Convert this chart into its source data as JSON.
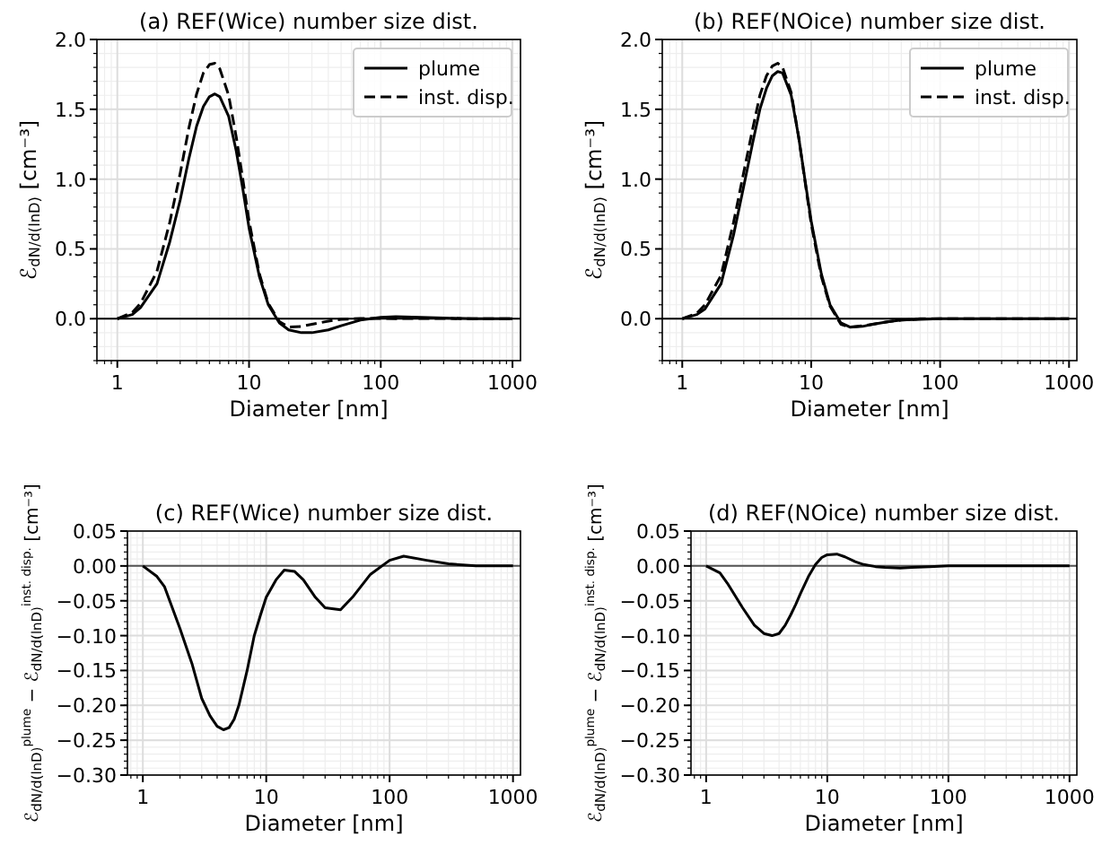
{
  "chart_data": [
    {
      "type": "line",
      "title": "(a) REF(Wice) number size dist.",
      "xlabel": "Diameter [nm]",
      "ylabel": "ℰ$_{dN/d(lnD)}$ [cm⁻³]",
      "log": "x",
      "grid": true,
      "legend": "top right",
      "xlim": [
        0.7,
        1150
      ],
      "xticks": [
        1,
        10,
        100,
        1000
      ],
      "ylim": [
        -0.3,
        2.0
      ],
      "yticks": [
        {
          "value": 0,
          "label": "0.0"
        },
        {
          "value": 0.5,
          "label": "0.5"
        },
        {
          "value": 1,
          "label": "1.0"
        },
        {
          "value": 1.5,
          "label": "1.5"
        },
        {
          "value": 2,
          "label": "2.0"
        }
      ],
      "ref_lines": [
        {
          "axis": "y",
          "value": 0,
          "color": "#000000"
        }
      ],
      "x": [
        1,
        1.3,
        1.5,
        2,
        2.5,
        3,
        3.5,
        4,
        4.5,
        5,
        5.5,
        6,
        7,
        8,
        9,
        10,
        12,
        14,
        17,
        20,
        25,
        30,
        40,
        50,
        70,
        100,
        130,
        200,
        300,
        500,
        1000
      ],
      "series": [
        {
          "name": "plume",
          "color": "#000000",
          "line_style": "solid",
          "values": [
            0,
            0.03,
            0.08,
            0.25,
            0.55,
            0.85,
            1.15,
            1.38,
            1.52,
            1.59,
            1.61,
            1.59,
            1.45,
            1.2,
            0.92,
            0.65,
            0.3,
            0.1,
            -0.03,
            -0.08,
            -0.1,
            -0.1,
            -0.08,
            -0.05,
            -0.01,
            0.01,
            0.015,
            0.01,
            0.005,
            0,
            0
          ]
        },
        {
          "name": "inst. disp.",
          "color": "#000000",
          "line_style": "dashed",
          "values": [
            0,
            0.045,
            0.11,
            0.34,
            0.69,
            1.04,
            1.37,
            1.61,
            1.76,
            1.82,
            1.83,
            1.79,
            1.6,
            1.3,
            0.99,
            0.7,
            0.32,
            0.11,
            -0.02,
            -0.06,
            -0.055,
            -0.04,
            -0.017,
            -0.005,
            0.002,
            0.002,
            0.001,
            0.002,
            0.002,
            0,
            0
          ]
        }
      ]
    },
    {
      "type": "line",
      "title": "(b) REF(NOice) number size dist.",
      "xlabel": "Diameter [nm]",
      "ylabel": "ℰ$_{dN/d(lnD)}$ [cm⁻³]",
      "log": "x",
      "grid": true,
      "legend": "top right",
      "xlim": [
        0.7,
        1150
      ],
      "xticks": [
        1,
        10,
        100,
        1000
      ],
      "ylim": [
        -0.3,
        2.0
      ],
      "yticks": [
        {
          "value": 0,
          "label": "0.0"
        },
        {
          "value": 0.5,
          "label": "0.5"
        },
        {
          "value": 1,
          "label": "1.0"
        },
        {
          "value": 1.5,
          "label": "1.5"
        },
        {
          "value": 2,
          "label": "2.0"
        }
      ],
      "ref_lines": [
        {
          "axis": "y",
          "value": 0,
          "color": "#000000"
        }
      ],
      "x": [
        1,
        1.3,
        1.5,
        2,
        2.5,
        3,
        3.5,
        4,
        4.5,
        5,
        5.5,
        6,
        7,
        8,
        9,
        10,
        12,
        14,
        17,
        20,
        25,
        30,
        40,
        50,
        70,
        100,
        130,
        200,
        300,
        500,
        1000
      ],
      "series": [
        {
          "name": "plume",
          "color": "#000000",
          "line_style": "solid",
          "values": [
            0,
            0.03,
            0.07,
            0.25,
            0.6,
            0.95,
            1.25,
            1.5,
            1.65,
            1.74,
            1.77,
            1.76,
            1.6,
            1.3,
            0.98,
            0.7,
            0.32,
            0.1,
            -0.03,
            -0.06,
            -0.055,
            -0.04,
            -0.02,
            -0.01,
            -0.005,
            0,
            0,
            0,
            0,
            0,
            0
          ]
        },
        {
          "name": "inst. disp.",
          "color": "#000000",
          "line_style": "dashed",
          "values": [
            0,
            0.04,
            0.1,
            0.31,
            0.69,
            1.05,
            1.35,
            1.6,
            1.74,
            1.81,
            1.83,
            1.8,
            1.62,
            1.3,
            0.97,
            0.68,
            0.3,
            0.09,
            -0.04,
            -0.06,
            -0.05,
            -0.04,
            -0.02,
            -0.01,
            0,
            0,
            0,
            0,
            0,
            0,
            0
          ]
        }
      ]
    },
    {
      "type": "line",
      "title": "(c) REF(Wice) number size dist.",
      "xlabel": "Diameter [nm]",
      "ylabel": "ℰ$_{dN/d(lnD)}$$^{plume}$ − ℰ$_{dN/d(lnD)}$$^{inst. disp.}$ [cm⁻³]",
      "log": "x",
      "grid": true,
      "xlim": [
        0.75,
        1150
      ],
      "xticks": [
        1,
        10,
        100,
        1000
      ],
      "ylim": [
        -0.3,
        0.05
      ],
      "yticks": [
        {
          "value": -0.3,
          "label": "−0.30"
        },
        {
          "value": -0.25,
          "label": "−0.25"
        },
        {
          "value": -0.2,
          "label": "−0.20"
        },
        {
          "value": -0.15,
          "label": "−0.15"
        },
        {
          "value": -0.1,
          "label": "−0.10"
        },
        {
          "value": -0.05,
          "label": "−0.05"
        },
        {
          "value": 0,
          "label": "0.00"
        },
        {
          "value": 0.05,
          "label": "0.05"
        }
      ],
      "ref_lines": [
        {
          "axis": "y",
          "value": 0,
          "color": "#555555"
        }
      ],
      "x": [
        1,
        1.3,
        1.5,
        2,
        2.5,
        3,
        3.5,
        4,
        4.5,
        5,
        5.5,
        6,
        7,
        8,
        9,
        10,
        12,
        14,
        17,
        20,
        25,
        30,
        40,
        50,
        70,
        100,
        130,
        200,
        300,
        500,
        1000
      ],
      "series": [
        {
          "color": "#000000",
          "line_style": "solid",
          "values": [
            0,
            -0.015,
            -0.03,
            -0.09,
            -0.14,
            -0.19,
            -0.215,
            -0.23,
            -0.235,
            -0.232,
            -0.22,
            -0.2,
            -0.15,
            -0.1,
            -0.07,
            -0.045,
            -0.02,
            -0.006,
            -0.008,
            -0.02,
            -0.045,
            -0.06,
            -0.063,
            -0.045,
            -0.012,
            0.008,
            0.014,
            0.008,
            0.003,
            0,
            0
          ]
        }
      ]
    },
    {
      "type": "line",
      "title": "(d) REF(NOice) number size dist.",
      "xlabel": "Diameter [nm]",
      "ylabel": "ℰ$_{dN/d(lnD)}$$^{plume}$ − ℰ$_{dN/d(lnD)}$$^{inst. disp.}$ [cm⁻³]",
      "log": "x",
      "grid": true,
      "xlim": [
        0.75,
        1150
      ],
      "xticks": [
        1,
        10,
        100,
        1000
      ],
      "ylim": [
        -0.3,
        0.05
      ],
      "yticks": [
        {
          "value": -0.3,
          "label": "−0.30"
        },
        {
          "value": -0.25,
          "label": "−0.25"
        },
        {
          "value": -0.2,
          "label": "−0.20"
        },
        {
          "value": -0.15,
          "label": "−0.15"
        },
        {
          "value": -0.1,
          "label": "−0.10"
        },
        {
          "value": -0.05,
          "label": "−0.05"
        },
        {
          "value": 0,
          "label": "0.00"
        },
        {
          "value": 0.05,
          "label": "0.05"
        }
      ],
      "ref_lines": [
        {
          "axis": "y",
          "value": 0,
          "color": "#555555"
        }
      ],
      "x": [
        1,
        1.3,
        1.5,
        2,
        2.5,
        3,
        3.5,
        4,
        4.5,
        5,
        5.5,
        6,
        7,
        8,
        9,
        10,
        12,
        14,
        17,
        20,
        25,
        30,
        40,
        50,
        70,
        100,
        130,
        200,
        300,
        500,
        1000
      ],
      "series": [
        {
          "color": "#000000",
          "line_style": "solid",
          "values": [
            0,
            -0.01,
            -0.025,
            -0.06,
            -0.085,
            -0.097,
            -0.1,
            -0.097,
            -0.085,
            -0.07,
            -0.055,
            -0.04,
            -0.015,
            0.002,
            0.012,
            0.016,
            0.017,
            0.013,
            0.006,
            0.002,
            -0.001,
            -0.002,
            -0.003,
            -0.002,
            -0.001,
            0,
            0,
            0,
            0,
            0,
            0
          ]
        }
      ]
    }
  ]
}
